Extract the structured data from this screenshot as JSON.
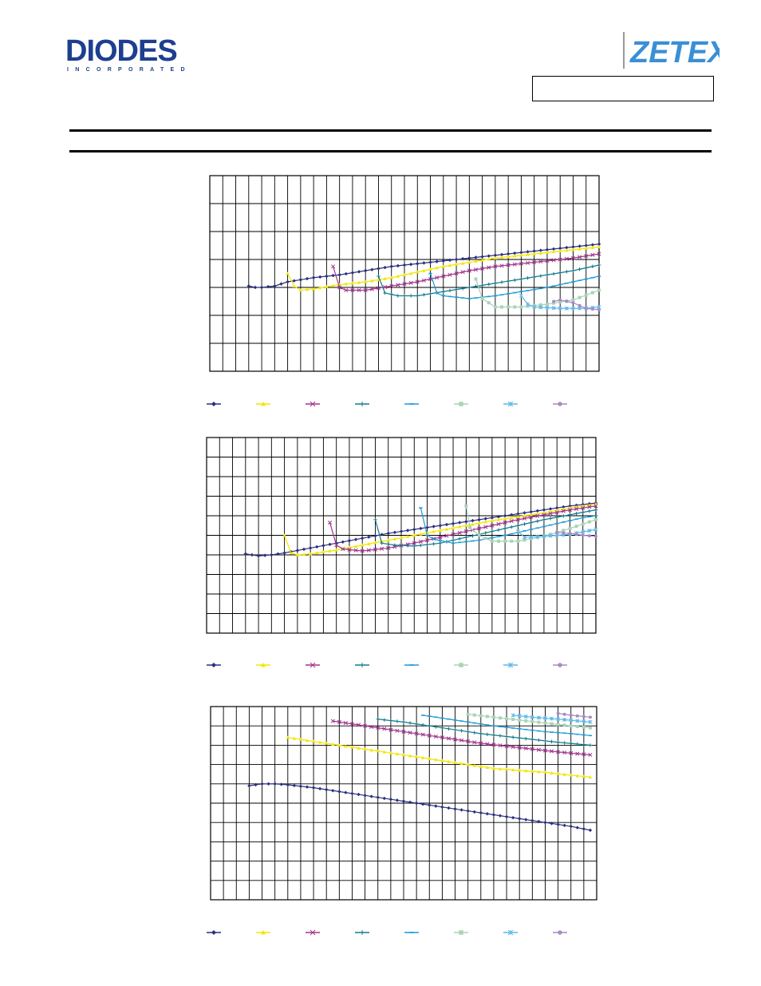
{
  "header": {
    "left_logo": {
      "name": "DIODES",
      "subtext": "INCORPORATED",
      "color": "#1e3f8f"
    },
    "right_logo": {
      "name": "ZETEX",
      "color": "#3a8fd6"
    },
    "part_box_text": ""
  },
  "charts": {
    "colors": [
      "#2b2f7e",
      "#f2e600",
      "#a2348e",
      "#117a8b",
      "#1d9bd6",
      "#a9d3b7",
      "#5fb7e6",
      "#a78ac6"
    ],
    "markers": [
      "diamond",
      "triangle",
      "cross",
      "plus",
      "dash",
      "square",
      "star",
      "circle"
    ]
  },
  "chart_data": [
    {
      "type": "line",
      "title": "",
      "xlabel": "",
      "ylabel": "",
      "grid": true,
      "xlim": [
        0,
        30
      ],
      "ylim": [
        -3,
        4
      ],
      "x_ticks": 30,
      "y_ticks": 7,
      "legend_position": "bottom",
      "series": [
        {
          "start_x": 3,
          "points": [
            [
              3,
              0.05
            ],
            [
              3.5,
              0
            ],
            [
              4,
              0
            ],
            [
              5,
              0.05
            ],
            [
              6,
              0.2
            ],
            [
              8,
              0.35
            ],
            [
              10,
              0.45
            ],
            [
              12,
              0.6
            ],
            [
              14,
              0.75
            ],
            [
              16,
              0.85
            ],
            [
              18,
              0.95
            ],
            [
              20,
              1.05
            ],
            [
              22,
              1.15
            ],
            [
              24,
              1.25
            ],
            [
              26,
              1.35
            ],
            [
              28,
              1.45
            ],
            [
              30,
              1.55
            ]
          ]
        },
        {
          "start_x": 6,
          "points": [
            [
              6,
              0.5
            ],
            [
              6.5,
              0.05
            ],
            [
              7,
              -0.1
            ],
            [
              8,
              -0.05
            ],
            [
              10,
              0.1
            ],
            [
              12,
              0.2
            ],
            [
              14,
              0.35
            ],
            [
              16,
              0.55
            ],
            [
              18,
              0.75
            ],
            [
              20,
              0.9
            ],
            [
              22,
              1.05
            ],
            [
              24,
              1.15
            ],
            [
              26,
              1.25
            ],
            [
              28,
              1.35
            ],
            [
              30,
              1.45
            ]
          ]
        },
        {
          "start_x": 9.5,
          "points": [
            [
              9.5,
              0.75
            ],
            [
              10,
              0
            ],
            [
              10.5,
              -0.1
            ],
            [
              12,
              -0.1
            ],
            [
              14,
              0.05
            ],
            [
              16,
              0.2
            ],
            [
              18,
              0.4
            ],
            [
              20,
              0.6
            ],
            [
              22,
              0.75
            ],
            [
              24,
              0.85
            ],
            [
              26,
              0.95
            ],
            [
              28,
              1.05
            ],
            [
              30,
              1.2
            ]
          ]
        },
        {
          "start_x": 13,
          "points": [
            [
              13,
              0.4
            ],
            [
              13.5,
              -0.2
            ],
            [
              14.5,
              -0.3
            ],
            [
              16,
              -0.3
            ],
            [
              18,
              -0.15
            ],
            [
              20,
              0
            ],
            [
              22,
              0.15
            ],
            [
              24,
              0.3
            ],
            [
              26,
              0.45
            ],
            [
              28,
              0.6
            ],
            [
              30,
              0.8
            ]
          ]
        },
        {
          "start_x": 17,
          "points": [
            [
              17,
              0.5
            ],
            [
              17.5,
              -0.2
            ],
            [
              18,
              -0.3
            ],
            [
              20,
              -0.4
            ],
            [
              22,
              -0.3
            ],
            [
              24,
              -0.15
            ],
            [
              26,
              0
            ],
            [
              28,
              0.2
            ],
            [
              30,
              0.4
            ]
          ]
        },
        {
          "start_x": 20.5,
          "points": [
            [
              20.5,
              0.3
            ],
            [
              21,
              -0.4
            ],
            [
              22,
              -0.7
            ],
            [
              24,
              -0.7
            ],
            [
              26,
              -0.6
            ],
            [
              28,
              -0.45
            ],
            [
              30,
              -0.1
            ]
          ]
        },
        {
          "start_x": 24,
          "points": [
            [
              24,
              -0.3
            ],
            [
              24.5,
              -0.6
            ],
            [
              25,
              -0.7
            ],
            [
              27,
              -0.75
            ],
            [
              29,
              -0.75
            ],
            [
              30,
              -0.7
            ]
          ]
        },
        {
          "start_x": 26.5,
          "points": [
            [
              26.5,
              -0.5
            ],
            [
              27,
              -0.45
            ],
            [
              28,
              -0.55
            ],
            [
              29,
              -0.75
            ],
            [
              30,
              -0.8
            ]
          ]
        }
      ]
    },
    {
      "type": "line",
      "title": "",
      "xlabel": "",
      "ylabel": "",
      "grid": true,
      "xlim": [
        0,
        30
      ],
      "ylim": [
        -4,
        6
      ],
      "x_ticks": 30,
      "y_ticks": 10,
      "legend_position": "bottom",
      "series": [
        {
          "start_x": 3,
          "points": [
            [
              3,
              0.05
            ],
            [
              3.5,
              0
            ],
            [
              4,
              -0.05
            ],
            [
              5,
              0
            ],
            [
              6,
              0.1
            ],
            [
              8,
              0.35
            ],
            [
              10,
              0.6
            ],
            [
              12,
              0.85
            ],
            [
              14,
              1.1
            ],
            [
              16,
              1.3
            ],
            [
              18,
              1.5
            ],
            [
              20,
              1.7
            ],
            [
              22,
              1.9
            ],
            [
              24,
              2.1
            ],
            [
              26,
              2.3
            ],
            [
              28,
              2.5
            ],
            [
              30,
              2.65
            ]
          ]
        },
        {
          "start_x": 6,
          "points": [
            [
              6,
              1
            ],
            [
              6.5,
              0.1
            ],
            [
              7,
              0
            ],
            [
              8,
              0.05
            ],
            [
              10,
              0.25
            ],
            [
              12,
              0.5
            ],
            [
              14,
              0.75
            ],
            [
              16,
              1.0
            ],
            [
              18,
              1.25
            ],
            [
              20,
              1.5
            ],
            [
              22,
              1.75
            ],
            [
              24,
              1.95
            ],
            [
              26,
              2.15
            ],
            [
              28,
              2.4
            ],
            [
              30,
              2.6
            ]
          ]
        },
        {
          "start_x": 9.5,
          "points": [
            [
              9.5,
              1.65
            ],
            [
              10,
              0.5
            ],
            [
              10.5,
              0.3
            ],
            [
              12,
              0.2
            ],
            [
              14,
              0.35
            ],
            [
              16,
              0.6
            ],
            [
              18,
              0.9
            ],
            [
              20,
              1.2
            ],
            [
              22,
              1.5
            ],
            [
              24,
              1.8
            ],
            [
              26,
              2.05
            ],
            [
              28,
              2.3
            ],
            [
              30,
              2.5
            ]
          ]
        },
        {
          "start_x": 13,
          "points": [
            [
              13,
              1.8
            ],
            [
              13.5,
              0.6
            ],
            [
              14.5,
              0.5
            ],
            [
              16,
              0.45
            ],
            [
              18,
              0.6
            ],
            [
              20,
              0.9
            ],
            [
              22,
              1.2
            ],
            [
              24,
              1.5
            ],
            [
              26,
              1.8
            ],
            [
              28,
              2.05
            ],
            [
              30,
              2.3
            ]
          ]
        },
        {
          "start_x": 16.5,
          "points": [
            [
              16.5,
              2.4
            ],
            [
              17,
              1.0
            ],
            [
              17.5,
              0.8
            ],
            [
              19,
              0.6
            ],
            [
              21,
              0.75
            ],
            [
              23,
              1.0
            ],
            [
              25,
              1.3
            ],
            [
              27,
              1.6
            ],
            [
              29,
              1.9
            ],
            [
              30,
              2.0
            ]
          ]
        },
        {
          "start_x": 20,
          "points": [
            [
              20,
              2.5
            ],
            [
              20.3,
              1.4
            ],
            [
              21,
              1.0
            ],
            [
              22,
              0.7
            ],
            [
              24,
              0.7
            ],
            [
              26,
              0.95
            ],
            [
              28,
              1.35
            ],
            [
              30,
              1.8
            ]
          ]
        },
        {
          "start_x": 24,
          "points": [
            [
              24,
              1.2
            ],
            [
              24.5,
              0.9
            ],
            [
              26,
              0.95
            ],
            [
              28,
              1.05
            ],
            [
              30,
              1.3
            ]
          ]
        },
        {
          "start_x": 27,
          "points": [
            [
              27,
              1.15
            ],
            [
              28,
              1.1
            ],
            [
              29,
              1.0
            ],
            [
              30,
              0.95
            ]
          ]
        }
      ]
    },
    {
      "type": "line",
      "title": "",
      "xlabel": "",
      "ylabel": "",
      "grid": true,
      "xlim": [
        0,
        30
      ],
      "ylim": [
        0,
        10
      ],
      "x_ticks": 30,
      "y_ticks": 10,
      "legend_position": "bottom",
      "series": [
        {
          "start_x": 3,
          "points": [
            [
              3,
              5.9
            ],
            [
              4,
              6.0
            ],
            [
              5,
              6.0
            ],
            [
              6,
              5.95
            ],
            [
              8,
              5.8
            ],
            [
              10,
              5.6
            ],
            [
              12,
              5.4
            ],
            [
              14,
              5.2
            ],
            [
              16,
              5.0
            ],
            [
              18,
              4.8
            ],
            [
              20,
              4.6
            ],
            [
              22,
              4.4
            ],
            [
              24,
              4.2
            ],
            [
              26,
              4.0
            ],
            [
              28,
              3.8
            ],
            [
              29.5,
              3.6
            ]
          ]
        },
        {
          "start_x": 6,
          "points": [
            [
              6,
              8.4
            ],
            [
              8,
              8.2
            ],
            [
              10,
              8.0
            ],
            [
              12,
              7.8
            ],
            [
              14,
              7.6
            ],
            [
              16,
              7.4
            ],
            [
              18,
              7.2
            ],
            [
              20,
              7.0
            ],
            [
              22,
              6.8
            ],
            [
              24,
              6.7
            ],
            [
              26,
              6.6
            ],
            [
              28,
              6.45
            ],
            [
              29.5,
              6.35
            ]
          ]
        },
        {
          "start_x": 9.5,
          "points": [
            [
              9.5,
              9.25
            ],
            [
              11,
              9.1
            ],
            [
              13,
              8.9
            ],
            [
              15,
              8.7
            ],
            [
              17,
              8.5
            ],
            [
              19,
              8.3
            ],
            [
              21,
              8.1
            ],
            [
              23,
              7.95
            ],
            [
              25,
              7.8
            ],
            [
              27,
              7.65
            ],
            [
              29.5,
              7.5
            ]
          ]
        },
        {
          "start_x": 13,
          "points": [
            [
              13,
              9.35
            ],
            [
              15,
              9.2
            ],
            [
              17,
              9.0
            ],
            [
              19,
              8.8
            ],
            [
              21,
              8.6
            ],
            [
              23,
              8.45
            ],
            [
              25,
              8.3
            ],
            [
              27,
              8.15
            ],
            [
              29.5,
              8.0
            ]
          ]
        },
        {
          "start_x": 16.5,
          "points": [
            [
              16.5,
              9.55
            ],
            [
              18,
              9.4
            ],
            [
              20,
              9.2
            ],
            [
              22,
              9.0
            ],
            [
              24,
              8.85
            ],
            [
              26,
              8.7
            ],
            [
              28,
              8.6
            ],
            [
              29.5,
              8.5
            ]
          ]
        },
        {
          "start_x": 20,
          "points": [
            [
              20,
              9.6
            ],
            [
              22,
              9.45
            ],
            [
              24,
              9.3
            ],
            [
              26,
              9.15
            ],
            [
              28,
              9.0
            ],
            [
              29.5,
              8.9
            ]
          ]
        },
        {
          "start_x": 23.5,
          "points": [
            [
              23.5,
              9.55
            ],
            [
              25,
              9.45
            ],
            [
              27,
              9.35
            ],
            [
              29.5,
              9.2
            ]
          ]
        },
        {
          "start_x": 27,
          "points": [
            [
              27,
              9.65
            ],
            [
              28,
              9.55
            ],
            [
              29.5,
              9.45
            ]
          ]
        }
      ]
    }
  ]
}
